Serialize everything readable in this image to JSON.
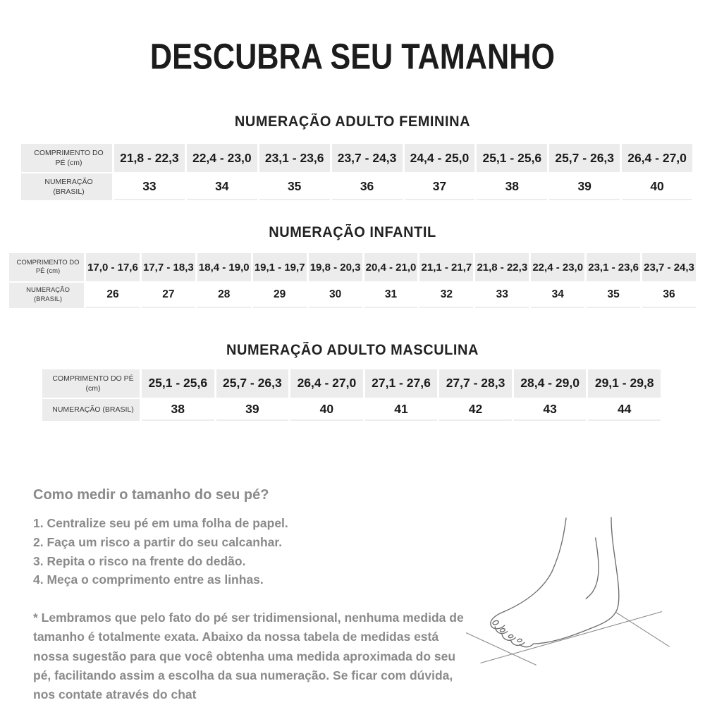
{
  "page": {
    "title": "DESCUBRA SEU TAMANHO"
  },
  "tables": [
    {
      "heading": "NUMERAÇÃO ADULTO FEMININA",
      "length_label": "COMPRIMENTO DO PÉ (cm)",
      "size_label": "NUMERAÇÃO (BRASIL)",
      "lengths": [
        "21,8 - 22,3",
        "22,4 - 23,0",
        "23,1 - 23,6",
        "23,7 - 24,3",
        "24,4 - 25,0",
        "25,1 - 25,6",
        "25,7 - 26,3",
        "26,4 - 27,0"
      ],
      "sizes": [
        "33",
        "34",
        "35",
        "36",
        "37",
        "38",
        "39",
        "40"
      ]
    },
    {
      "heading": "NUMERAÇÃO INFANTIL",
      "length_label": "COMPRIMENTO DO PÉ (cm)",
      "size_label": "NUMERAÇÃO (BRASIL)",
      "lengths": [
        "17,0 - 17,6",
        "17,7 - 18,3",
        "18,4 - 19,0",
        "19,1 - 19,7",
        "19,8 - 20,3",
        "20,4 - 21,0",
        "21,1 - 21,7",
        "21,8 - 22,3",
        "22,4 - 23,0",
        "23,1 - 23,6",
        "23,7 - 24,3"
      ],
      "sizes": [
        "26",
        "27",
        "28",
        "29",
        "30",
        "31",
        "32",
        "33",
        "34",
        "35",
        "36"
      ]
    },
    {
      "heading": "NUMERAÇÃO ADULTO MASCULINA",
      "length_label": "COMPRIMENTO DO PÉ (cm)",
      "size_label": "NUMERAÇÃO (BRASIL)",
      "lengths": [
        "25,1 - 25,6",
        "25,7 - 26,3",
        "26,4 - 27,0",
        "27,1 - 27,6",
        "27,7 - 28,3",
        "28,4 - 29,0",
        "29,1 - 29,8"
      ],
      "sizes": [
        "38",
        "39",
        "40",
        "41",
        "42",
        "43",
        "44"
      ]
    }
  ],
  "guide": {
    "heading": "Como medir o tamanho do seu pé?",
    "steps": [
      "1. Centralize seu pé em uma folha de papel.",
      "2. Faça um risco a partir do seu calcanhar.",
      "3. Repita o risco na frente do dedão.",
      "4. Meça o comprimento entre as linhas."
    ],
    "note": "* Lembramos que pelo fato do pé ser tridimensional, nenhuma medida de tamanho é totalmente exata. Abaixo da nossa tabela de medidas está nossa sugestão para que você obtenha uma medida aproximada do seu pé, facilitando assim a escolha da sua numeração. Se ficar com dúvida, nos contate através do chat"
  },
  "illustration": {
    "name": "foot-measurement-line-drawing"
  },
  "colors": {
    "table_header_bg": "#ececec",
    "text_dark": "#1c1c1c",
    "text_gray": "#8a8a8a"
  }
}
